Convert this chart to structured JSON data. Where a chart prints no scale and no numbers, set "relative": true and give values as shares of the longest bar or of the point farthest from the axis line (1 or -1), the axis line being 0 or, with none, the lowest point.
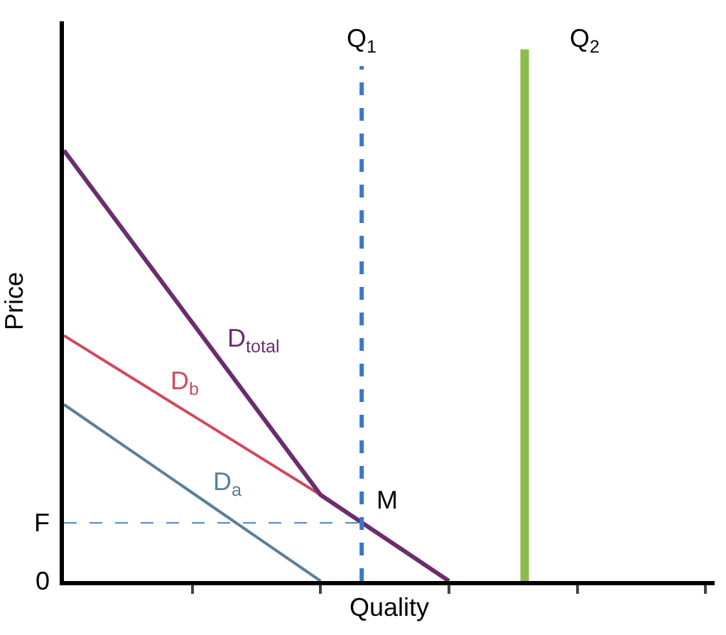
{
  "chart_data": {
    "type": "line",
    "relative": true,
    "xlabel": "Quality",
    "ylabel": "Price",
    "categories": [
      null,
      null,
      null,
      null,
      null,
      null
    ],
    "series": [
      {
        "color": "#5a7f9a",
        "values": [
          0.41,
          0.205,
          0,
          null,
          null,
          null
        ]
      },
      {
        "color": "#d04a5e",
        "values": [
          0.57,
          0.385,
          0.2,
          null,
          null,
          null
        ]
      },
      {
        "color": "#6b2d6e",
        "values": [
          1,
          0.6,
          0.2,
          0,
          null,
          null
        ]
      }
    ],
    "ref_lines": [
      {
        "axis": "y",
        "value": 0.135,
        "label": "F",
        "color": "#5a8fd8",
        "line_style": "dashed"
      }
    ],
    "annotations": [
      "D$_{a}$",
      "D$_{b}$",
      "D$_{total}$",
      "M",
      "0",
      "Q$_{1}$",
      "Q$_{2}$"
    ],
    "marker": "none",
    "line_style": "solid"
  }
}
